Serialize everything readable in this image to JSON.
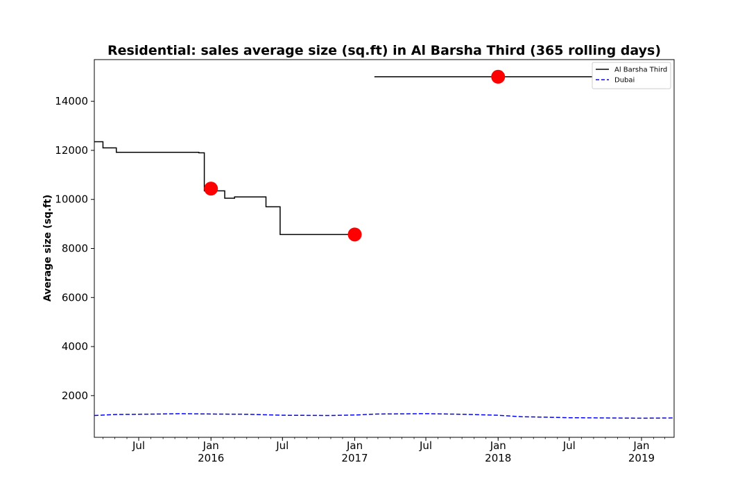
{
  "chart_data": {
    "type": "line",
    "title": "Residential: sales average size (sq.ft) in Al Barsha Third (365 rolling days)",
    "xlabel": "",
    "ylabel": "Average size (sq.ft)",
    "xlim": [
      "2015-03-10",
      "2019-03-25"
    ],
    "ylim": [
      300,
      15700
    ],
    "yticks": [
      2000,
      4000,
      6000,
      8000,
      10000,
      12000,
      14000
    ],
    "xticks": [
      {
        "date": "2015-07-01",
        "label": "Jul",
        "sub": ""
      },
      {
        "date": "2016-01-01",
        "label": "Jan",
        "sub": "2016"
      },
      {
        "date": "2016-07-01",
        "label": "Jul",
        "sub": ""
      },
      {
        "date": "2017-01-01",
        "label": "Jan",
        "sub": "2017"
      },
      {
        "date": "2017-07-01",
        "label": "Jul",
        "sub": ""
      },
      {
        "date": "2018-01-01",
        "label": "Jan",
        "sub": "2018"
      },
      {
        "date": "2018-07-01",
        "label": "Jul",
        "sub": ""
      },
      {
        "date": "2019-01-01",
        "label": "Jan",
        "sub": "2019"
      }
    ],
    "legend_position": "top-right",
    "series": [
      {
        "name": "Al Barsha Third",
        "color": "#000000",
        "style": "solid",
        "step": true,
        "segments": [
          [
            [
              "2015-03-10",
              12350
            ],
            [
              "2015-04-01",
              12100
            ],
            [
              "2015-05-05",
              11920
            ],
            [
              "2015-12-01",
              11900
            ],
            [
              "2015-12-15",
              10350
            ],
            [
              "2016-02-05",
              10050
            ],
            [
              "2016-03-01",
              10100
            ],
            [
              "2016-05-20",
              9700
            ],
            [
              "2016-06-25",
              8570
            ],
            [
              "2017-01-01",
              8570
            ]
          ],
          [
            [
              "2017-02-20",
              15000
            ],
            [
              "2018-10-31",
              15000
            ]
          ]
        ]
      },
      {
        "name": "Dubai",
        "color": "#0000ff",
        "style": "dashed",
        "step": false,
        "points": [
          [
            "2015-03-10",
            1190
          ],
          [
            "2015-05-01",
            1230
          ],
          [
            "2015-08-01",
            1245
          ],
          [
            "2015-10-15",
            1265
          ],
          [
            "2016-01-01",
            1250
          ],
          [
            "2016-04-01",
            1240
          ],
          [
            "2016-07-01",
            1200
          ],
          [
            "2016-11-01",
            1190
          ],
          [
            "2017-01-01",
            1210
          ],
          [
            "2017-03-01",
            1250
          ],
          [
            "2017-07-01",
            1265
          ],
          [
            "2017-10-01",
            1240
          ],
          [
            "2018-01-01",
            1200
          ],
          [
            "2018-03-01",
            1140
          ],
          [
            "2018-07-01",
            1100
          ],
          [
            "2018-10-01",
            1090
          ],
          [
            "2019-01-01",
            1080
          ],
          [
            "2019-03-25",
            1090
          ]
        ]
      }
    ],
    "markers": [
      {
        "date": "2016-01-01",
        "value": 10440,
        "color": "#ff0000"
      },
      {
        "date": "2017-01-01",
        "value": 8570,
        "color": "#ff0000"
      },
      {
        "date": "2018-01-01",
        "value": 15000,
        "color": "#ff0000"
      }
    ]
  }
}
